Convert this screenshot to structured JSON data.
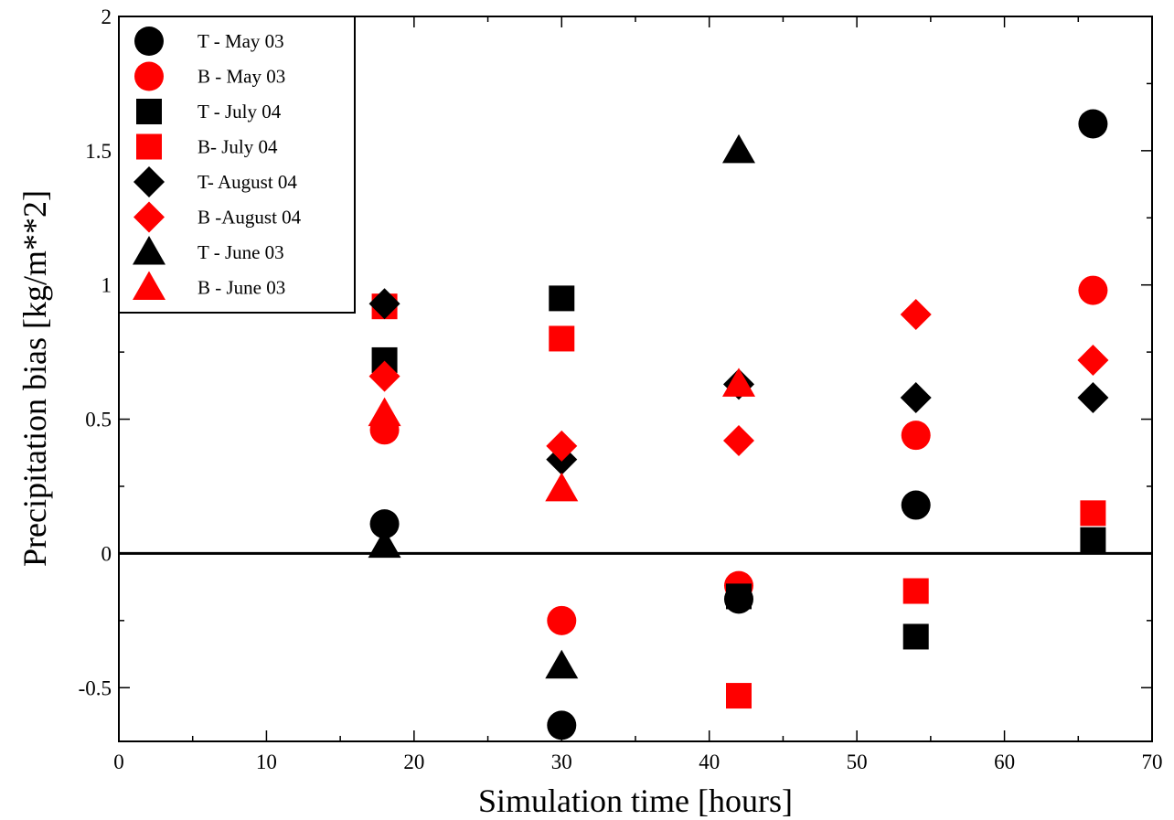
{
  "chart_data": {
    "type": "scatter",
    "xlabel": "Simulation time [hours]",
    "ylabel": "Precipitation bias [kg/m**2]",
    "xlim": [
      0,
      70
    ],
    "ylim": [
      -0.7,
      2
    ],
    "x_ticks": [
      0,
      10,
      20,
      30,
      40,
      50,
      60,
      70
    ],
    "x_tick_labels": [
      "0",
      "10",
      "20",
      "30",
      "40",
      "50",
      "60",
      "70"
    ],
    "y_ticks": [
      -0.5,
      0,
      0.5,
      1,
      1.5,
      2
    ],
    "y_tick_labels": [
      "-0.5",
      "0",
      "0.5",
      "1",
      "1.5",
      "2"
    ],
    "grid": false,
    "legend_position": "top-left",
    "zero_line": 0,
    "series": [
      {
        "name": "T - May 03",
        "marker": "circle",
        "color": "#000000",
        "points": [
          [
            18,
            0.11
          ],
          [
            30,
            -0.64
          ],
          [
            42,
            -0.17
          ],
          [
            54,
            0.18
          ],
          [
            66,
            1.6
          ]
        ]
      },
      {
        "name": "B - May 03",
        "marker": "circle",
        "color": "#ff0000",
        "points": [
          [
            18,
            0.46
          ],
          [
            30,
            -0.25
          ],
          [
            42,
            -0.12
          ],
          [
            54,
            0.44
          ],
          [
            66,
            0.98
          ]
        ]
      },
      {
        "name": "T - July 04",
        "marker": "square",
        "color": "#000000",
        "points": [
          [
            18,
            0.72
          ],
          [
            30,
            0.95
          ],
          [
            42,
            -0.16
          ],
          [
            54,
            -0.31
          ],
          [
            66,
            0.05
          ]
        ]
      },
      {
        "name": "B- July 04",
        "marker": "square",
        "color": "#ff0000",
        "points": [
          [
            18,
            0.92
          ],
          [
            30,
            0.8
          ],
          [
            42,
            -0.53
          ],
          [
            54,
            -0.14
          ],
          [
            66,
            0.15
          ]
        ]
      },
      {
        "name": "T- August 04",
        "marker": "diamond",
        "color": "#000000",
        "points": [
          [
            18,
            0.93
          ],
          [
            30,
            0.35
          ],
          [
            42,
            0.63
          ],
          [
            54,
            0.58
          ],
          [
            66,
            0.58
          ]
        ]
      },
      {
        "name": "B -August 04",
        "marker": "diamond",
        "color": "#ff0000",
        "points": [
          [
            18,
            0.66
          ],
          [
            30,
            0.4
          ],
          [
            42,
            0.42
          ],
          [
            54,
            0.89
          ],
          [
            66,
            0.72
          ]
        ]
      },
      {
        "name": "T - June 03",
        "marker": "triangle",
        "color": "#000000",
        "points": [
          [
            18,
            0.03
          ],
          [
            30,
            -0.42
          ],
          [
            42,
            1.5
          ]
        ]
      },
      {
        "name": "B - June 03",
        "marker": "triangle",
        "color": "#ff0000",
        "points": [
          [
            18,
            0.52
          ],
          [
            30,
            0.24
          ],
          [
            42,
            0.63
          ]
        ]
      }
    ]
  }
}
